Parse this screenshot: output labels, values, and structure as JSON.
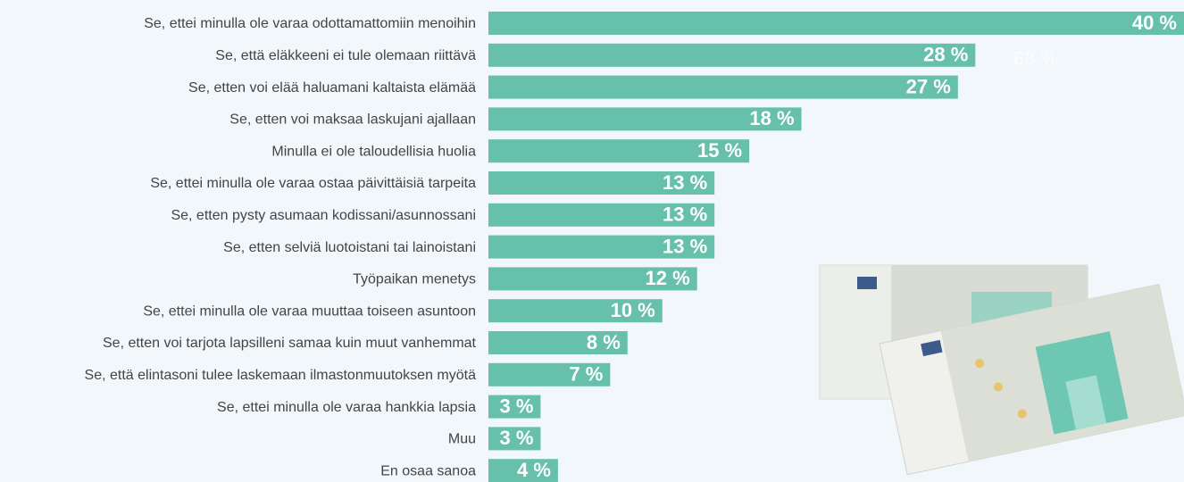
{
  "chart_data": {
    "type": "bar",
    "orientation": "horizontal",
    "categories": [
      "Se, ettei minulla ole varaa odottamattomiin menoihin",
      "Se, että eläkkeeni ei tule olemaan riittävä",
      "Se, etten voi elää haluamani kaltaista elämää",
      "Se, etten voi maksaa laskujani ajallaan",
      "Minulla ei ole taloudellisia huolia",
      "Se, ettei minulla ole varaa ostaa päivittäisiä tarpeita",
      "Se, etten pysty asumaan kodissani/asunnossani",
      "Se, etten selviä luotoistani tai lainoistani",
      "Työpaikan menetys",
      "Se, ettei minulla ole varaa muuttaa toiseen asuntoon",
      "Se, etten voi tarjota lapsilleni samaa kuin muut vanhemmat",
      "Se, että elintasoni tulee laskemaan ilmastonmuutoksen myötä",
      "Se, ettei minulla ole varaa hankkia lapsia",
      "Muu",
      "En osaa sanoa"
    ],
    "values": [
      40,
      28,
      27,
      18,
      15,
      13,
      13,
      13,
      12,
      10,
      8,
      7,
      3,
      3,
      4
    ],
    "value_labels": [
      "40 %",
      "28 %",
      "27 %",
      "18 %",
      "15 %",
      "13 %",
      "13 %",
      "13 %",
      "12 %",
      "10 %",
      "8 %",
      "7 %",
      "3 %",
      "3 %",
      "4 %"
    ],
    "annotation": "68 %",
    "color": "#66c0ab",
    "xlim": [
      0,
      40
    ]
  }
}
